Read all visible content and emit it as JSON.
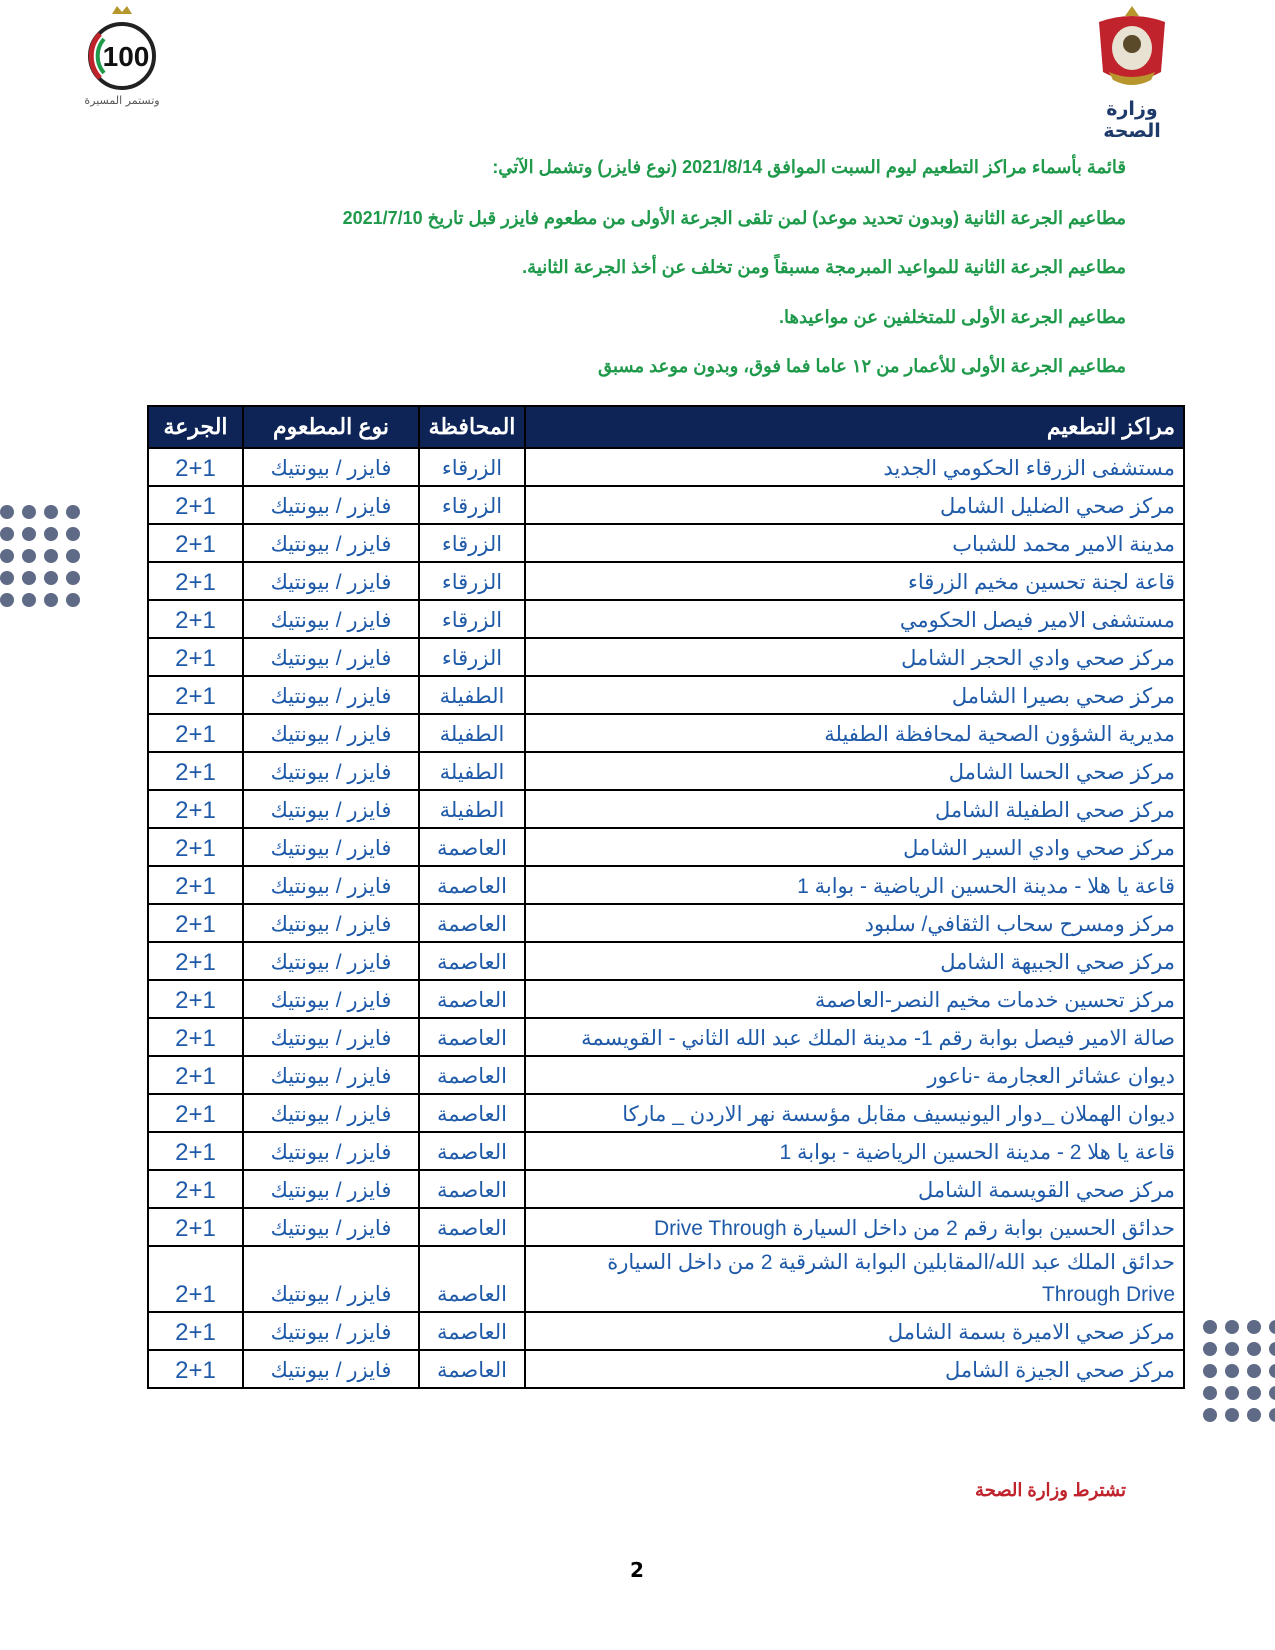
{
  "header": {
    "left_logo_number": "100",
    "left_logo_tagline": "وتستمر المسيرة",
    "ministry_name": "وزارة الصحة"
  },
  "intro_lines": [
    "قائمة بأسماء مراكز التطعيم ليوم السبت الموافق 2021/8/14 (نوع فايزر) وتشمل الآتي:",
    "مطاعيم الجرعة الثانية (وبدون تحديد موعد) لمن تلقى الجرعة الأولى من مطعوم فايزر قبل تاريخ 2021/7/10",
    "مطاعيم الجرعة الثانية للمواعيد المبرمجة مسبقاً ومن تخلف عن أخذ الجرعة الثانية.",
    "مطاعيم الجرعة الأولى للمتخلفين عن مواعيدها.",
    "مطاعيم الجرعة الأولى للأعمار من ١٢ عاما فما فوق، وبدون موعد مسبق"
  ],
  "table": {
    "headers": [
      "مراكز التطعيم",
      "المحافظة",
      "نوع المطعوم",
      "الجرعة"
    ],
    "rows": [
      [
        "مستشفى الزرقاء الحكومي الجديد",
        "الزرقاء",
        "فايزر / بيونتيك",
        "2+1"
      ],
      [
        "مركز صحي الضليل الشامل",
        "الزرقاء",
        "فايزر / بيونتيك",
        "2+1"
      ],
      [
        "مدينة الامير محمد للشباب",
        "الزرقاء",
        "فايزر / بيونتيك",
        "2+1"
      ],
      [
        "قاعة لجنة تحسين مخيم الزرقاء",
        "الزرقاء",
        "فايزر / بيونتيك",
        "2+1"
      ],
      [
        "مستشفى الامير فيصل الحكومي",
        "الزرقاء",
        "فايزر / بيونتيك",
        "2+1"
      ],
      [
        "مركز صحي وادي الحجر الشامل",
        "الزرقاء",
        "فايزر / بيونتيك",
        "2+1"
      ],
      [
        "مركز صحي بصيرا الشامل",
        "الطفيلة",
        "فايزر / بيونتيك",
        "2+1"
      ],
      [
        "مديرية الشؤون الصحية لمحافظة الطفيلة",
        "الطفيلة",
        "فايزر / بيونتيك",
        "2+1"
      ],
      [
        "مركز صحي الحسا الشامل",
        "الطفيلة",
        "فايزر / بيونتيك",
        "2+1"
      ],
      [
        "مركز صحي الطفيلة الشامل",
        "الطفيلة",
        "فايزر / بيونتيك",
        "2+1"
      ],
      [
        "مركز صحي وادي السير الشامل",
        "العاصمة",
        "فايزر / بيونتيك",
        "2+1"
      ],
      [
        "قاعة يا هلا - مدينة الحسين الرياضية - بوابة 1",
        "العاصمة",
        "فايزر / بيونتيك",
        "2+1"
      ],
      [
        "مركز ومسرح سحاب الثقافي/ سلبود",
        "العاصمة",
        "فايزر / بيونتيك",
        "2+1"
      ],
      [
        "مركز صحي الجبيهة الشامل",
        "العاصمة",
        "فايزر / بيونتيك",
        "2+1"
      ],
      [
        "مركز تحسين خدمات مخيم النصر-العاصمة",
        "العاصمة",
        "فايزر / بيونتيك",
        "2+1"
      ],
      [
        "صالة الامير فيصل بوابة رقم 1- مدينة الملك عبد الله الثاني - القويسمة",
        "العاصمة",
        "فايزر / بيونتيك",
        "2+1"
      ],
      [
        "ديوان عشائر العجارمة -ناعور",
        "العاصمة",
        "فايزر / بيونتيك",
        "2+1"
      ],
      [
        "ديوان الهملان _دوار اليونيسيف مقابل مؤسسة نهر الاردن _ ماركا",
        "العاصمة",
        "فايزر / بيونتيك",
        "2+1"
      ],
      [
        "قاعة يا هلا 2 - مدينة الحسين الرياضية - بوابة 1",
        "العاصمة",
        "فايزر / بيونتيك",
        "2+1"
      ],
      [
        "مركز صحي القويسمة الشامل",
        "العاصمة",
        "فايزر / بيونتيك",
        "2+1"
      ],
      [
        "حدائق الحسين بوابة رقم 2 من داخل السيارة Drive Through",
        "العاصمة",
        "فايزر / بيونتيك",
        "2+1"
      ],
      [
        "حدائق الملك عبد الله/المقابلين البوابة الشرقية 2 من داخل السيارة Through Drive",
        "العاصمة",
        "فايزر / بيونتيك",
        "2+1"
      ],
      [
        "مركز صحي الاميرة بسمة  الشامل",
        "العاصمة",
        "فايزر / بيونتيك",
        "2+1"
      ],
      [
        "مركز صحي الجيزة الشامل",
        "العاصمة",
        "فايزر / بيونتيك",
        "2+1"
      ]
    ]
  },
  "footer": {
    "note": "تشترط وزارة الصحة",
    "page_number": "2"
  },
  "colors": {
    "intro_text": "#1f9a4b",
    "table_header_bg": "#0e2456",
    "table_text": "#1f5aa8",
    "footer_note": "#c0232b",
    "dots": "#5f6a86"
  }
}
